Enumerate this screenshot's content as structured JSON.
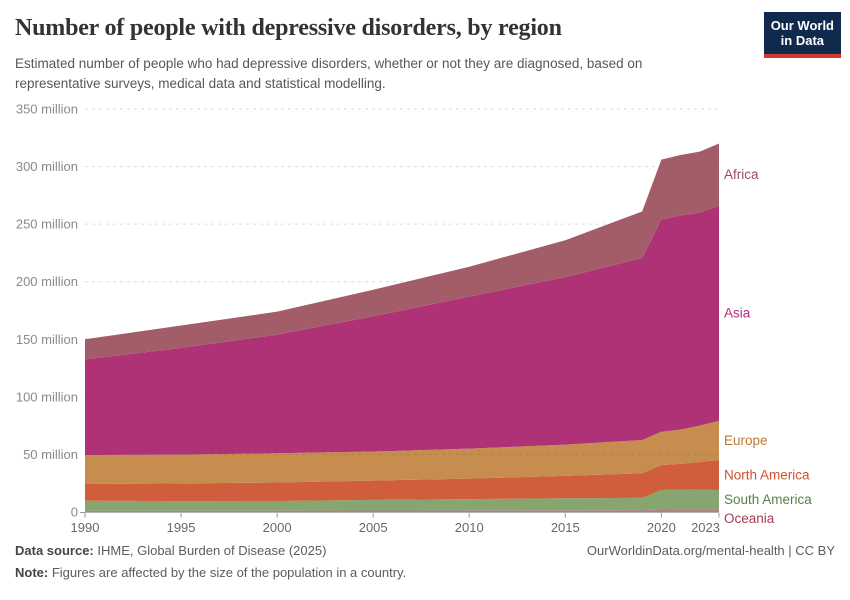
{
  "header": {
    "title": "Number of people with depressive disorders, by region",
    "subtitle": "Estimated number of people who had depressive disorders, whether or not they are diagnosed, based on representative surveys, medical data and statistical modelling."
  },
  "logo": {
    "line1": "Our World",
    "line2": "in Data",
    "bg_color": "#102a4d",
    "bar_color": "#cf3b32"
  },
  "chart_data": {
    "type": "area",
    "stacked": true,
    "title": "Number of people with depressive disorders, by region",
    "unit": "million",
    "x": [
      1990,
      1995,
      2000,
      2005,
      2010,
      2015,
      2019,
      2020,
      2021,
      2022,
      2023
    ],
    "xticks": [
      1990,
      1995,
      2000,
      2005,
      2010,
      2015,
      2020,
      2023
    ],
    "ylim": [
      0,
      350
    ],
    "yticks": [
      {
        "value": 0,
        "label": "0"
      },
      {
        "value": 50,
        "label": "50 million"
      },
      {
        "value": 100,
        "label": "100 million"
      },
      {
        "value": 150,
        "label": "150 million"
      },
      {
        "value": 200,
        "label": "200 million"
      },
      {
        "value": 250,
        "label": "250 million"
      },
      {
        "value": 300,
        "label": "300 million"
      },
      {
        "value": 350,
        "label": "350 million"
      }
    ],
    "grid": true,
    "legend_position": "right",
    "series": [
      {
        "name": "Oceania",
        "color": "#ad7f88",
        "label_color": "#a93c50",
        "values": [
          1.1,
          1.15,
          1.2,
          1.3,
          1.4,
          1.5,
          1.6,
          2.2,
          2.25,
          2.3,
          2.5
        ]
      },
      {
        "name": "South America",
        "color": "#87a56f",
        "label_color": "#578145",
        "values": [
          8.7,
          8.25,
          8.4,
          9.2,
          9.8,
          10.4,
          10.7,
          16.9,
          17.15,
          17.0,
          16.6
        ]
      },
      {
        "name": "North America",
        "color": "#d05e3d",
        "label_color": "#d1512f",
        "values": [
          14.5,
          15.5,
          16.0,
          16.8,
          17.8,
          19.5,
          21.3,
          21.7,
          22.4,
          24.1,
          26.1
        ]
      },
      {
        "name": "Europe",
        "color": "#c68d4f",
        "label_color": "#bb7a2c",
        "values": [
          25.2,
          24.9,
          25.4,
          25.2,
          26.0,
          27.1,
          28.9,
          28.9,
          29.7,
          31.6,
          34.1
        ]
      },
      {
        "name": "Asia",
        "color": "#af3277",
        "label_color": "#b02e7c",
        "values": [
          83.0,
          92.7,
          103.0,
          117.5,
          132.0,
          145.5,
          158.0,
          184.3,
          186.0,
          185.0,
          186.7
        ]
      },
      {
        "name": "Africa",
        "color": "#a35d68",
        "label_color": "#9a4e5c",
        "values": [
          17.5,
          19.5,
          20.0,
          23.0,
          26.0,
          32.0,
          40.5,
          52.0,
          52.5,
          53.0,
          54.0
        ]
      }
    ]
  },
  "footer": {
    "source_label": "Data source:",
    "source_value": " IHME, Global Burden of Disease (2025)",
    "note_label": "Note:",
    "note_value": " Figures are affected by the size of the population in a country.",
    "link": "OurWorldinData.org/mental-health | CC BY"
  }
}
